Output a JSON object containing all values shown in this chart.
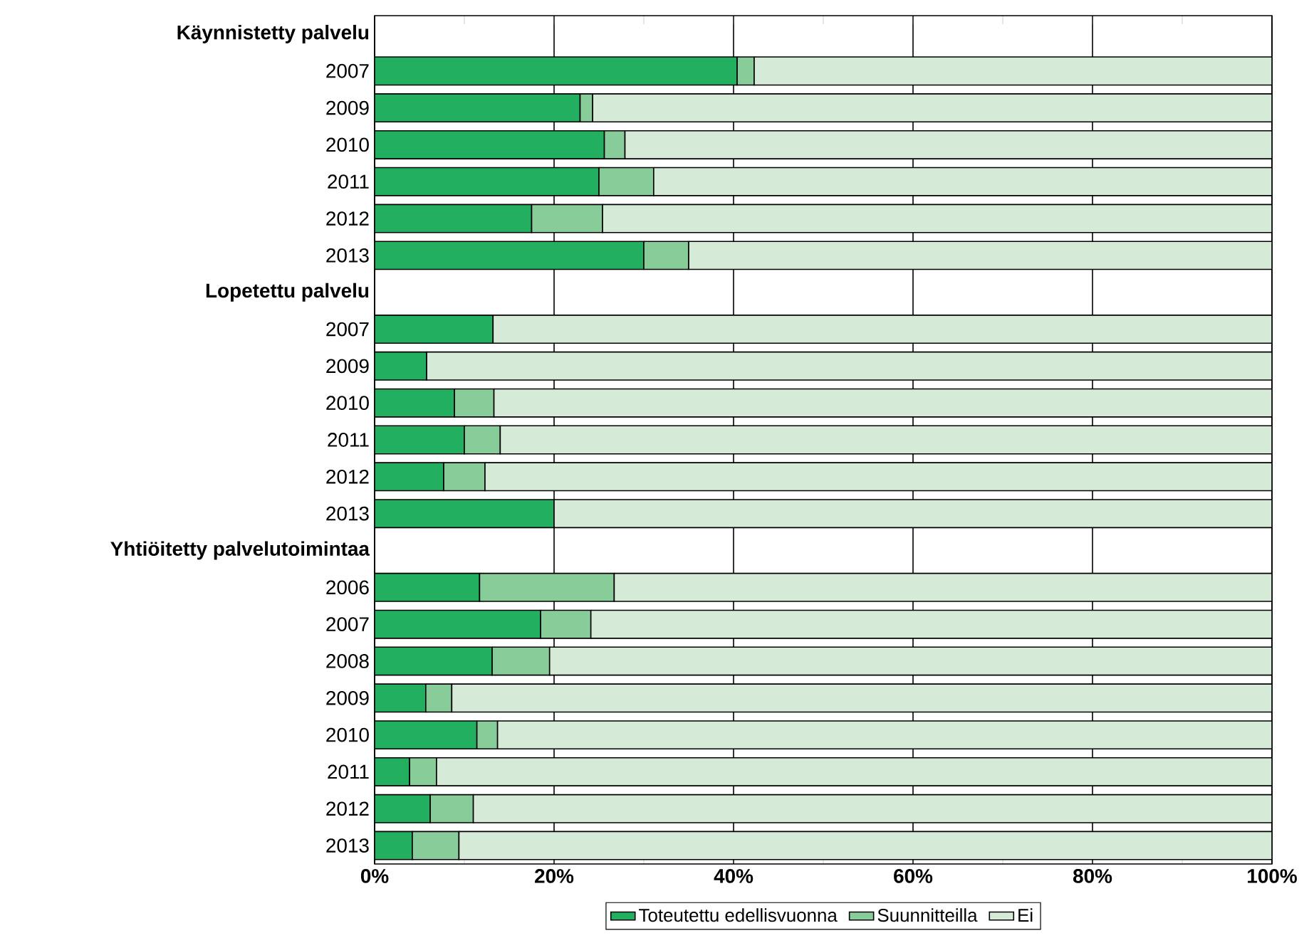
{
  "chart_data": {
    "type": "bar",
    "orientation": "horizontal",
    "stacked": true,
    "categories": [
      "Käynnistetty palvelu",
      "2007",
      "2009",
      "2010",
      "2011",
      "2012",
      "2013",
      "Lopetettu palvelu",
      "2007",
      "2009",
      "2010",
      "2011",
      "2012",
      "2013",
      "Yhtiöitetty palvelutoimintaa",
      "2006",
      "2007",
      "2008",
      "2009",
      "2010",
      "2011",
      "2012",
      "2013"
    ],
    "series": [
      {
        "name": "Toteutettu edellisvuonna",
        "color": "#22b060",
        "values": [
          null,
          40.4,
          22.9,
          25.6,
          25.0,
          17.5,
          30.0,
          null,
          13.2,
          5.8,
          8.9,
          10.0,
          7.7,
          20.0,
          null,
          11.7,
          18.5,
          13.1,
          5.7,
          11.4,
          3.9,
          6.2,
          4.2
        ]
      },
      {
        "name": "Suunnitteilla",
        "color": "#88cc99",
        "values": [
          null,
          1.9,
          1.4,
          2.3,
          6.1,
          7.9,
          5.0,
          null,
          null,
          null,
          4.4,
          4.0,
          4.6,
          null,
          null,
          15.0,
          5.6,
          6.4,
          2.9,
          2.3,
          3.0,
          4.8,
          5.2
        ]
      },
      {
        "name": "Ei",
        "color": "#d5ebd8",
        "values": [
          null,
          57.7,
          75.7,
          72.1,
          68.9,
          74.6,
          65.0,
          null,
          86.8,
          94.2,
          86.7,
          86.0,
          87.7,
          80.0,
          null,
          73.3,
          75.9,
          80.5,
          91.4,
          86.3,
          93.1,
          89.0,
          90.6
        ]
      }
    ],
    "xlim": [
      0,
      100
    ],
    "xticks": [
      {
        "value": 0,
        "label": "0%"
      },
      {
        "value": 10,
        "label": null
      },
      {
        "value": 20,
        "label": "20%"
      },
      {
        "value": 30,
        "label": null
      },
      {
        "value": 40,
        "label": "40%"
      },
      {
        "value": 50,
        "label": null
      },
      {
        "value": 60,
        "label": "60%"
      },
      {
        "value": 70,
        "label": null
      },
      {
        "value": 80,
        "label": "80%"
      },
      {
        "value": 90,
        "label": null
      },
      {
        "value": 100,
        "label": "100%"
      }
    ],
    "grid": "x",
    "legend": "bottom"
  }
}
